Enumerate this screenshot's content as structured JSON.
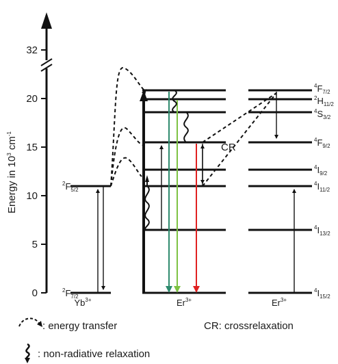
{
  "axis": {
    "ylabel": "Energy in 10",
    "ylabel_sup": "3",
    "ylabel_unit": " cm",
    "ylabel_unit_sup": "-1",
    "ticks": [
      "0",
      "5",
      "10",
      "15",
      "20",
      "32"
    ]
  },
  "ions": {
    "yb": {
      "name": "Yb",
      "charge": "3+"
    },
    "er_left": {
      "name": "Er",
      "charge": "3+"
    },
    "er_right": {
      "name": "Er",
      "charge": "3+"
    }
  },
  "yb_levels": {
    "upper": {
      "main": "F",
      "sup": "2",
      "sub": "5/2"
    },
    "lower": {
      "main": "F",
      "sup": "2",
      "sub": "7/2"
    }
  },
  "er_levels": [
    {
      "main": "F",
      "sup": "4",
      "sub": "7/2"
    },
    {
      "main": "H",
      "sup": "2",
      "sub": "11/2"
    },
    {
      "main": "S",
      "sup": "4",
      "sub": "3/2"
    },
    {
      "main": "F",
      "sup": "4",
      "sub": "9/2"
    },
    {
      "main": "I",
      "sup": "4",
      "sub": "9/2"
    },
    {
      "main": "I",
      "sup": "4",
      "sub": "11/2"
    },
    {
      "main": "I",
      "sup": "4",
      "sub": "13/2"
    },
    {
      "main": "I",
      "sup": "4",
      "sub": "15/2"
    }
  ],
  "cr_label": "CR",
  "legend": {
    "energy_transfer": ": energy transfer",
    "non_radiative": ": non-radiative relaxation",
    "crossrelaxation": "CR: crossrelaxation"
  },
  "colors": {
    "line": "#111111",
    "emission_blue_green": "#2e8b6e",
    "emission_green": "#7dc242",
    "emission_red": "#e02020"
  }
}
